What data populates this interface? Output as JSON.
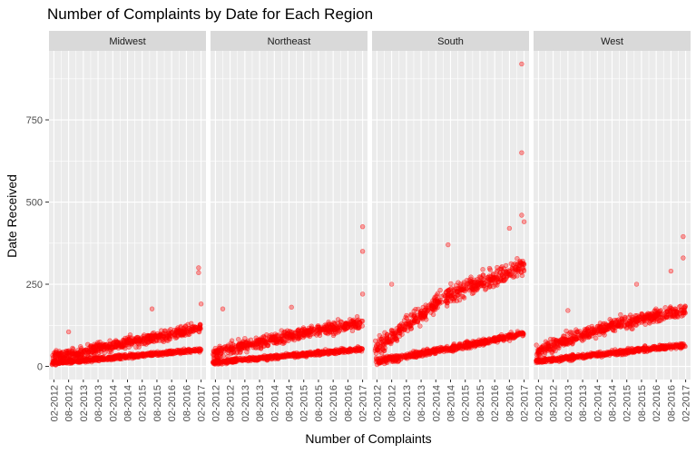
{
  "chart_data": {
    "type": "scatter",
    "title": "Number of Complaints by Date for Each Region",
    "xlabel": "Number of Complaints",
    "ylabel": "Date Received",
    "x_tick_labels": [
      "02-2012",
      "08-2012",
      "02-2013",
      "08-2013",
      "02-2014",
      "08-2014",
      "02-2015",
      "08-2015",
      "02-2016",
      "08-2016",
      "02-2017"
    ],
    "xlim": [
      "2011-12",
      "2017-04"
    ],
    "y_ticks": [
      0,
      250,
      500,
      750
    ],
    "ylim": [
      -40,
      960
    ],
    "point_color": "#ff0000",
    "point_opacity": 0.35,
    "grid": true,
    "panel_background": "#ebebeb",
    "strip_background": "#d9d9d9",
    "panels": [
      {
        "region": "Midwest",
        "bands": [
          {
            "x": [
              "2012-01",
              "2012-07",
              "2013-01",
              "2013-07",
              "2014-01",
              "2014-07",
              "2015-01",
              "2015-07",
              "2016-01",
              "2016-07",
              "2017-02"
            ],
            "y": [
              28,
              35,
              42,
              55,
              62,
              72,
              80,
              88,
              95,
              105,
              118
            ],
            "spread": 30
          },
          {
            "x": [
              "2012-01",
              "2012-07",
              "2013-01",
              "2013-07",
              "2014-01",
              "2014-07",
              "2015-01",
              "2015-07",
              "2016-01",
              "2016-07",
              "2017-02"
            ],
            "y": [
              10,
              14,
              18,
              22,
              26,
              30,
              34,
              38,
              42,
              46,
              50
            ],
            "spread": 12
          }
        ],
        "outliers": [
          {
            "x": "2017-01",
            "y": 300
          },
          {
            "x": "2017-01",
            "y": 285
          },
          {
            "x": "2017-02",
            "y": 190
          },
          {
            "x": "2015-06",
            "y": 175
          },
          {
            "x": "2012-08",
            "y": 105
          }
        ]
      },
      {
        "region": "Northeast",
        "bands": [
          {
            "x": [
              "2012-01",
              "2012-07",
              "2013-01",
              "2013-07",
              "2014-01",
              "2014-07",
              "2015-01",
              "2015-07",
              "2016-01",
              "2016-07",
              "2017-02"
            ],
            "y": [
              38,
              50,
              62,
              72,
              82,
              92,
              100,
              108,
              115,
              122,
              130
            ],
            "spread": 32
          },
          {
            "x": [
              "2012-01",
              "2012-07",
              "2013-01",
              "2013-07",
              "2014-01",
              "2014-07",
              "2015-01",
              "2015-07",
              "2016-01",
              "2016-07",
              "2017-02"
            ],
            "y": [
              12,
              16,
              20,
              24,
              28,
              32,
              36,
              40,
              44,
              48,
              52
            ],
            "spread": 12
          }
        ],
        "outliers": [
          {
            "x": "2017-02",
            "y": 425
          },
          {
            "x": "2017-02",
            "y": 350
          },
          {
            "x": "2017-02",
            "y": 220
          },
          {
            "x": "2014-09",
            "y": 180
          },
          {
            "x": "2012-05",
            "y": 175
          }
        ]
      },
      {
        "region": "South",
        "bands": [
          {
            "x": [
              "2012-01",
              "2012-07",
              "2013-01",
              "2013-07",
              "2014-01",
              "2014-07",
              "2015-01",
              "2015-07",
              "2016-01",
              "2016-07",
              "2017-02"
            ],
            "y": [
              55,
              85,
              120,
              150,
              185,
              215,
              235,
              250,
              265,
              285,
              310
            ],
            "spread": 50
          },
          {
            "x": [
              "2012-01",
              "2012-07",
              "2013-01",
              "2013-07",
              "2014-01",
              "2014-07",
              "2015-01",
              "2015-07",
              "2016-01",
              "2016-07",
              "2017-02"
            ],
            "y": [
              15,
              22,
              30,
              38,
              46,
              54,
              62,
              70,
              80,
              90,
              100
            ],
            "spread": 18
          }
        ],
        "outliers": [
          {
            "x": "2017-01",
            "y": 920
          },
          {
            "x": "2017-01",
            "y": 650
          },
          {
            "x": "2017-01",
            "y": 460
          },
          {
            "x": "2017-02",
            "y": 440
          },
          {
            "x": "2016-08",
            "y": 420
          },
          {
            "x": "2014-07",
            "y": 370
          },
          {
            "x": "2012-08",
            "y": 250
          }
        ]
      },
      {
        "region": "West",
        "bands": [
          {
            "x": [
              "2012-01",
              "2012-07",
              "2013-01",
              "2013-07",
              "2014-01",
              "2014-07",
              "2015-01",
              "2015-07",
              "2016-01",
              "2016-07",
              "2017-02"
            ],
            "y": [
              45,
              62,
              80,
              95,
              108,
              120,
              132,
              142,
              152,
              162,
              170
            ],
            "spread": 35
          },
          {
            "x": [
              "2012-01",
              "2012-07",
              "2013-01",
              "2013-07",
              "2014-01",
              "2014-07",
              "2015-01",
              "2015-07",
              "2016-01",
              "2016-07",
              "2017-02"
            ],
            "y": [
              15,
              20,
              25,
              30,
              35,
              40,
              45,
              50,
              55,
              60,
              65
            ],
            "spread": 14
          }
        ],
        "outliers": [
          {
            "x": "2017-01",
            "y": 395
          },
          {
            "x": "2017-01",
            "y": 330
          },
          {
            "x": "2016-08",
            "y": 290
          },
          {
            "x": "2015-06",
            "y": 250
          },
          {
            "x": "2013-02",
            "y": 170
          }
        ]
      }
    ]
  }
}
